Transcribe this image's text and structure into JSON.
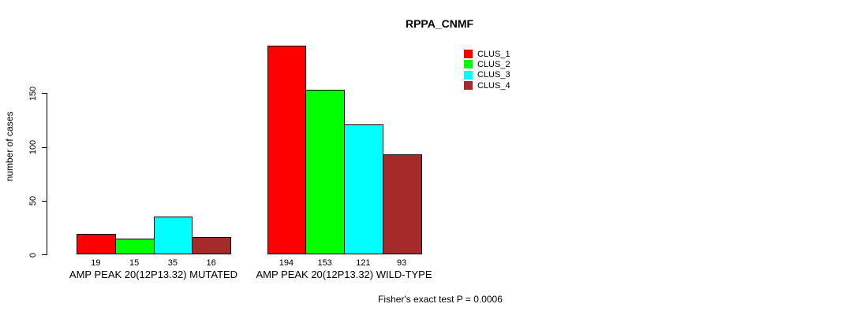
{
  "chart_data": {
    "type": "bar",
    "title": "RPPA_CNMF",
    "ylabel": "number of cases",
    "xlabel": "",
    "categories": [
      "AMP PEAK 20(12P13.32) MUTATED",
      "AMP PEAK 20(12P13.32) WILD-TYPE"
    ],
    "series": [
      {
        "name": "CLUS_1",
        "color": "#ff0000",
        "values": [
          19,
          194
        ]
      },
      {
        "name": "CLUS_2",
        "color": "#00ff00",
        "values": [
          15,
          153
        ]
      },
      {
        "name": "CLUS_3",
        "color": "#00ffff",
        "values": [
          35,
          121
        ]
      },
      {
        "name": "CLUS_4",
        "color": "#a52a2a",
        "values": [
          16,
          93
        ]
      }
    ],
    "bar_value_labels": [
      [
        19,
        15,
        35,
        16
      ],
      [
        194,
        153,
        121,
        93
      ]
    ],
    "yticks": [
      0,
      50,
      100,
      150
    ],
    "ylim": [
      0,
      200
    ],
    "grid": false,
    "legend_position": "top-right",
    "legend_entries": [
      "CLUS_1",
      "CLUS_2",
      "CLUS_3",
      "CLUS_4"
    ],
    "annotation": "Fisher's exact test P = 0.0006"
  },
  "colors": {
    "background": "#ffffff",
    "axis": "#000000",
    "text": "#000000",
    "clus_1": "#ff0000",
    "clus_2": "#00ff00",
    "clus_3": "#00ffff",
    "clus_4": "#a52a2a"
  }
}
